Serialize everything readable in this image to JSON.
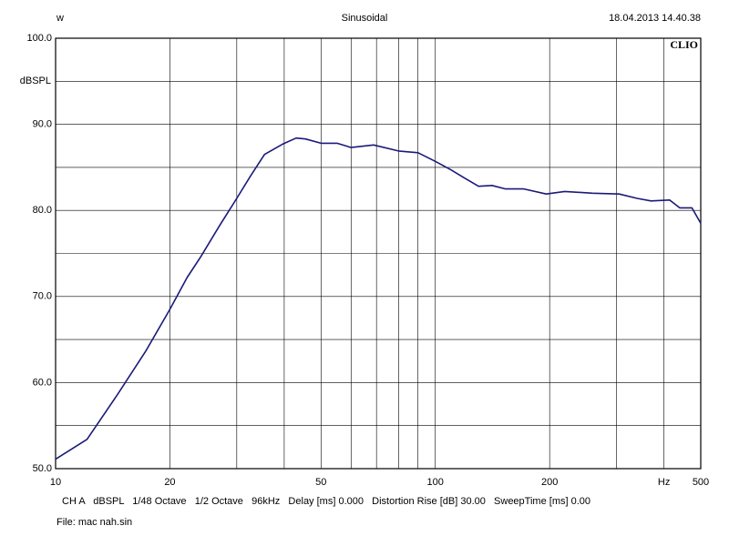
{
  "chart_data": {
    "type": "line",
    "title": "Sinusoidal",
    "header_left": "w",
    "timestamp": "18.04.2013 14.40.38",
    "brand": "CLIO",
    "y_label": "dBSPL",
    "settings_line": "CH A   dBSPL   1/48 Octave   1/2 Octave   96kHz   Delay [ms] 0.000   Distortion Rise [dB] 30.00   SweepTime [ms] 0.00",
    "file_line": "File: mac nah.sin",
    "x_scale": "log",
    "xlim": [
      10,
      500
    ],
    "ylim": [
      50,
      100
    ],
    "xticks": [
      10,
      20,
      50,
      100,
      200,
      {
        "value": 400,
        "label": "Hz"
      },
      500
    ],
    "minor_xticks": [
      30,
      40,
      60,
      70,
      80,
      90,
      300
    ],
    "yticks": [
      {
        "value": 100,
        "label": "100.0"
      },
      {
        "value": 90,
        "label": "90.0"
      },
      {
        "value": 80,
        "label": "80.0"
      },
      {
        "value": 70,
        "label": "70.0"
      },
      {
        "value": 60,
        "label": "60.0"
      },
      {
        "value": 50,
        "label": "50.0"
      }
    ],
    "minor_yticks": [
      55,
      65,
      75,
      85,
      95
    ],
    "grid": true,
    "series": [
      {
        "color": "#1a1a7a",
        "x": [
          10,
          12.1,
          14.6,
          17.3,
          20,
          22.2,
          24.1,
          27,
          30,
          32.6,
          35.5,
          39.6,
          43,
          45.5,
          50,
          55.1,
          60,
          68.8,
          80,
          90,
          100,
          110,
          119,
          130,
          141,
          153,
          171,
          196,
          219,
          259,
          305,
          340,
          370,
          414,
          440,
          474,
          500
        ],
        "values": [
          51.1,
          53.4,
          58.7,
          63.7,
          68.5,
          72.2,
          74.6,
          78.2,
          81.4,
          84.0,
          86.5,
          87.7,
          88.4,
          88.3,
          87.8,
          87.8,
          87.3,
          87.6,
          86.9,
          86.7,
          85.7,
          84.7,
          83.8,
          82.8,
          82.9,
          82.5,
          82.5,
          81.9,
          82.2,
          82.0,
          81.9,
          81.4,
          81.1,
          81.2,
          80.3,
          80.3,
          78.5
        ]
      }
    ]
  }
}
